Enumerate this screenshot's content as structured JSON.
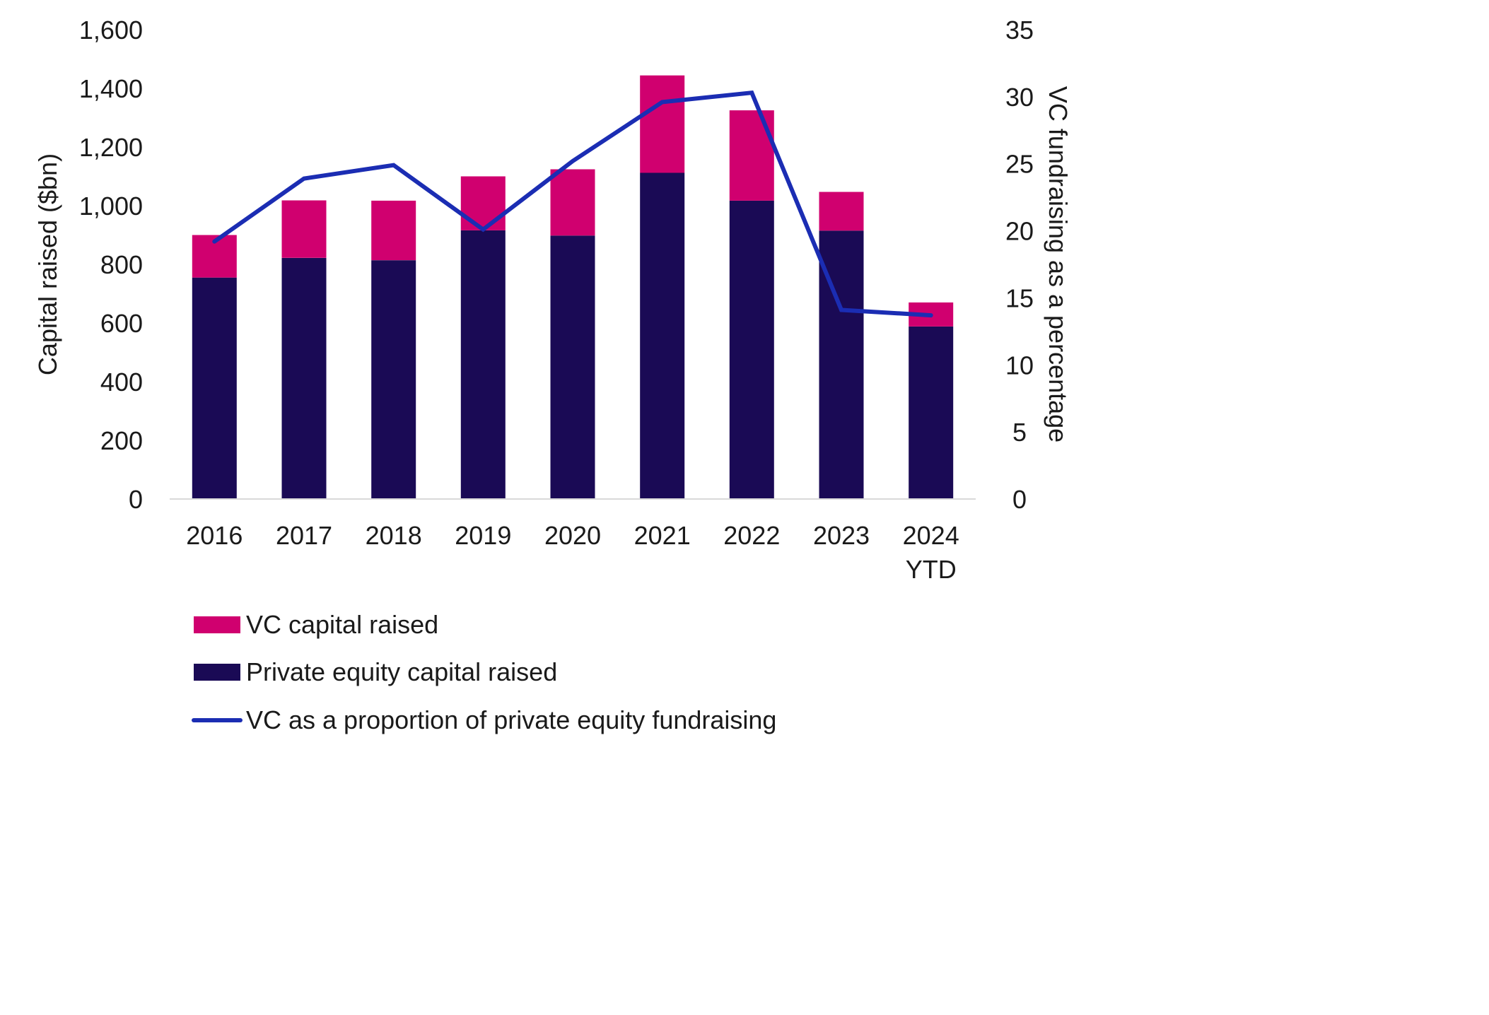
{
  "chart_data": {
    "type": "bar",
    "stacked": true,
    "categories": [
      "2016",
      "2017",
      "2018",
      "2019",
      "2020",
      "2021",
      "2022",
      "2023",
      "2024 YTD"
    ],
    "series": [
      {
        "name": "Private equity capital raised",
        "type": "bar",
        "axis": "left",
        "color": "#1a0a55",
        "values": [
          755,
          822,
          814,
          916,
          898,
          1112,
          1017,
          915,
          588
        ]
      },
      {
        "name": "VC capital raised",
        "type": "bar",
        "axis": "left",
        "color": "#d0006f",
        "values": [
          145,
          196,
          203,
          184,
          226,
          332,
          308,
          132,
          82
        ]
      },
      {
        "name": "VC as a proportion of private equity fundraising",
        "type": "line",
        "axis": "right",
        "color": "#1b2db3",
        "values": [
          19.2,
          23.9,
          24.9,
          20.1,
          25.2,
          29.6,
          30.3,
          14.1,
          13.7
        ]
      }
    ],
    "ylabel": "Capital raised ($bn)",
    "ylabel_right": "VC fundraising as a percentage",
    "ylim": [
      0,
      1600
    ],
    "ylim_right": [
      0,
      35
    ],
    "yticks": [
      "0",
      "200",
      "400",
      "600",
      "800",
      "1,000",
      "1,200",
      "1,400",
      "1,600"
    ],
    "yticks_right": [
      "0",
      "5",
      "10",
      "15",
      "20",
      "25",
      "30",
      "35"
    ],
    "grid": false,
    "legend": {
      "position": "bottom",
      "entries": [
        {
          "label": "VC capital raised",
          "marker": "box",
          "color": "#d0006f"
        },
        {
          "label": "Private equity capital raised",
          "marker": "box",
          "color": "#1a0a55"
        },
        {
          "label": "VC as a proportion of private equity fundraising",
          "marker": "line",
          "color": "#1b2db3"
        }
      ]
    }
  }
}
